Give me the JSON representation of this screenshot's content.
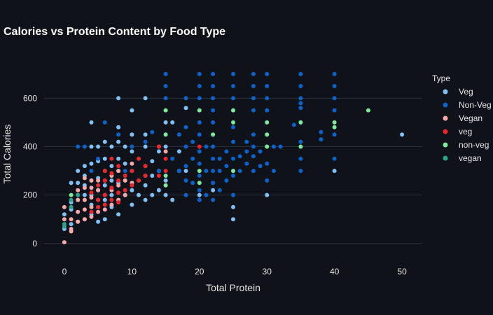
{
  "chart_data": {
    "type": "scatter",
    "title": "Calories vs Protein Content by Food Type",
    "xlabel": "Total Protein",
    "ylabel": "Total Calories",
    "xlim": [
      -3,
      53
    ],
    "ylim": [
      -70,
      760
    ],
    "x_ticks": [
      0,
      10,
      20,
      30,
      40,
      50
    ],
    "y_ticks": [
      0,
      200,
      400,
      600
    ],
    "grid": "horizontal",
    "legend_position": "right",
    "legend_title": "Type",
    "series": [
      {
        "name": "Veg",
        "color": "#7fc1f5",
        "points": [
          [
            0,
            60
          ],
          [
            0,
            120
          ],
          [
            1,
            80
          ],
          [
            1,
            140
          ],
          [
            1,
            170
          ],
          [
            1,
            250
          ],
          [
            2,
            90
          ],
          [
            2,
            180
          ],
          [
            2,
            250
          ],
          [
            2,
            300
          ],
          [
            3,
            100
          ],
          [
            3,
            200
          ],
          [
            3,
            240
          ],
          [
            3,
            280
          ],
          [
            3,
            320
          ],
          [
            4,
            120
          ],
          [
            4,
            160
          ],
          [
            4,
            200
          ],
          [
            4,
            260
          ],
          [
            4,
            330
          ],
          [
            4,
            400
          ],
          [
            4,
            500
          ],
          [
            5,
            90
          ],
          [
            5,
            150
          ],
          [
            5,
            220
          ],
          [
            5,
            270
          ],
          [
            5,
            340
          ],
          [
            5,
            400
          ],
          [
            6,
            100
          ],
          [
            6,
            180
          ],
          [
            6,
            240
          ],
          [
            6,
            300
          ],
          [
            6,
            350
          ],
          [
            6,
            420
          ],
          [
            7,
            150
          ],
          [
            7,
            200
          ],
          [
            7,
            260
          ],
          [
            7,
            320
          ],
          [
            7,
            400
          ],
          [
            8,
            120
          ],
          [
            8,
            180
          ],
          [
            8,
            250
          ],
          [
            8,
            300
          ],
          [
            8,
            350
          ],
          [
            8,
            420
          ],
          [
            8,
            480
          ],
          [
            8,
            600
          ],
          [
            9,
            200
          ],
          [
            9,
            260
          ],
          [
            9,
            330
          ],
          [
            9,
            400
          ],
          [
            10,
            160
          ],
          [
            10,
            220
          ],
          [
            10,
            300
          ],
          [
            10,
            380
          ],
          [
            10,
            450
          ],
          [
            10,
            550
          ],
          [
            11,
            200
          ],
          [
            11,
            260
          ],
          [
            12,
            180
          ],
          [
            12,
            240
          ],
          [
            12,
            320
          ],
          [
            12,
            400
          ],
          [
            12,
            450
          ],
          [
            12,
            600
          ],
          [
            13,
            200
          ],
          [
            13,
            280
          ],
          [
            13,
            340
          ],
          [
            14,
            220
          ],
          [
            14,
            300
          ],
          [
            14,
            380
          ],
          [
            15,
            200
          ],
          [
            15,
            260
          ],
          [
            15,
            400
          ],
          [
            15,
            500
          ],
          [
            16,
            180
          ],
          [
            16,
            500
          ],
          [
            17,
            300
          ],
          [
            17,
            380
          ],
          [
            18,
            300
          ],
          [
            18,
            560
          ],
          [
            20,
            200
          ],
          [
            22,
            220
          ],
          [
            25,
            100
          ],
          [
            25,
            150
          ],
          [
            30,
            200
          ],
          [
            40,
            300
          ],
          [
            50,
            450
          ]
        ]
      },
      {
        "name": "Non-Veg",
        "color": "#0b63c9",
        "points": [
          [
            2,
            400
          ],
          [
            3,
            400
          ],
          [
            4,
            300
          ],
          [
            5,
            350
          ],
          [
            6,
            500
          ],
          [
            8,
            450
          ],
          [
            9,
            300
          ],
          [
            10,
            400
          ],
          [
            11,
            350
          ],
          [
            12,
            420
          ],
          [
            13,
            460
          ],
          [
            14,
            300
          ],
          [
            15,
            450
          ],
          [
            15,
            550
          ],
          [
            15,
            600
          ],
          [
            15,
            650
          ],
          [
            15,
            700
          ],
          [
            16,
            350
          ],
          [
            17,
            300
          ],
          [
            17,
            450
          ],
          [
            18,
            200
          ],
          [
            18,
            260
          ],
          [
            18,
            320
          ],
          [
            18,
            400
          ],
          [
            18,
            480
          ],
          [
            18,
            600
          ],
          [
            19,
            250
          ],
          [
            19,
            350
          ],
          [
            19,
            420
          ],
          [
            20,
            180
          ],
          [
            20,
            220
          ],
          [
            20,
            280
          ],
          [
            20,
            330
          ],
          [
            20,
            380
          ],
          [
            20,
            450
          ],
          [
            20,
            500
          ],
          [
            20,
            550
          ],
          [
            20,
            600
          ],
          [
            20,
            650
          ],
          [
            20,
            700
          ],
          [
            21,
            200
          ],
          [
            21,
            300
          ],
          [
            21,
            400
          ],
          [
            22,
            180
          ],
          [
            22,
            250
          ],
          [
            22,
            300
          ],
          [
            22,
            350
          ],
          [
            22,
            400
          ],
          [
            22,
            450
          ],
          [
            22,
            500
          ],
          [
            22,
            550
          ],
          [
            22,
            600
          ],
          [
            22,
            650
          ],
          [
            22,
            700
          ],
          [
            23,
            220
          ],
          [
            23,
            300
          ],
          [
            23,
            350
          ],
          [
            24,
            260
          ],
          [
            24,
            320
          ],
          [
            24,
            380
          ],
          [
            25,
            200
          ],
          [
            25,
            280
          ],
          [
            25,
            350
          ],
          [
            25,
            420
          ],
          [
            25,
            480
          ],
          [
            25,
            550
          ],
          [
            25,
            600
          ],
          [
            25,
            650
          ],
          [
            25,
            700
          ],
          [
            26,
            300
          ],
          [
            26,
            360
          ],
          [
            27,
            330
          ],
          [
            27,
            380
          ],
          [
            27,
            420
          ],
          [
            28,
            300
          ],
          [
            28,
            360
          ],
          [
            28,
            400
          ],
          [
            28,
            450
          ],
          [
            28,
            550
          ],
          [
            28,
            600
          ],
          [
            28,
            650
          ],
          [
            28,
            700
          ],
          [
            29,
            320
          ],
          [
            29,
            380
          ],
          [
            30,
            260
          ],
          [
            30,
            330
          ],
          [
            30,
            400
          ],
          [
            30,
            450
          ],
          [
            30,
            500
          ],
          [
            30,
            550
          ],
          [
            30,
            600
          ],
          [
            30,
            650
          ],
          [
            30,
            700
          ],
          [
            31,
            300
          ],
          [
            31,
            400
          ],
          [
            32,
            400
          ],
          [
            34,
            490
          ],
          [
            35,
            300
          ],
          [
            35,
            350
          ],
          [
            35,
            420
          ],
          [
            35,
            500
          ],
          [
            35,
            560
          ],
          [
            35,
            580
          ],
          [
            35,
            600
          ],
          [
            35,
            650
          ],
          [
            35,
            700
          ],
          [
            38,
            430
          ],
          [
            38,
            460
          ],
          [
            40,
            350
          ],
          [
            40,
            450
          ],
          [
            40,
            550
          ],
          [
            40,
            600
          ],
          [
            40,
            650
          ],
          [
            40,
            700
          ]
        ]
      },
      {
        "name": "Vegan",
        "color": "#f7a8a8",
        "points": [
          [
            0,
            5
          ],
          [
            0,
            100
          ],
          [
            0,
            150
          ],
          [
            1,
            50
          ],
          [
            1,
            60
          ],
          [
            1,
            100
          ],
          [
            1,
            150
          ],
          [
            2,
            90
          ],
          [
            2,
            130
          ],
          [
            2,
            180
          ],
          [
            2,
            220
          ],
          [
            3,
            100
          ],
          [
            3,
            140
          ],
          [
            3,
            180
          ],
          [
            3,
            230
          ],
          [
            3,
            270
          ],
          [
            4,
            110
          ],
          [
            4,
            150
          ],
          [
            4,
            190
          ],
          [
            4,
            230
          ],
          [
            4,
            260
          ],
          [
            5,
            130
          ],
          [
            5,
            180
          ],
          [
            5,
            220
          ],
          [
            5,
            260
          ],
          [
            6,
            140
          ],
          [
            6,
            200
          ],
          [
            6,
            260
          ],
          [
            7,
            160
          ],
          [
            7,
            220
          ],
          [
            7,
            280
          ],
          [
            8,
            180
          ],
          [
            8,
            240
          ],
          [
            8,
            300
          ],
          [
            9,
            200
          ],
          [
            9,
            260
          ],
          [
            10,
            250
          ],
          [
            10,
            330
          ],
          [
            12,
            280
          ],
          [
            14,
            400
          ],
          [
            15,
            380
          ]
        ]
      },
      {
        "name": "veg",
        "color": "#e8262b",
        "points": [
          [
            4,
            130
          ],
          [
            4,
            210
          ],
          [
            5,
            150
          ],
          [
            5,
            180
          ],
          [
            5,
            240
          ],
          [
            6,
            160
          ],
          [
            6,
            200
          ],
          [
            6,
            260
          ],
          [
            6,
            300
          ],
          [
            7,
            180
          ],
          [
            7,
            230
          ],
          [
            7,
            290
          ],
          [
            7,
            350
          ],
          [
            8,
            170
          ],
          [
            8,
            210
          ],
          [
            8,
            260
          ],
          [
            8,
            320
          ],
          [
            9,
            220
          ],
          [
            9,
            280
          ],
          [
            10,
            240
          ],
          [
            10,
            300
          ],
          [
            11,
            260
          ],
          [
            11,
            350
          ],
          [
            12,
            280
          ],
          [
            12,
            320
          ],
          [
            14,
            280
          ],
          [
            14,
            400
          ],
          [
            15,
            240
          ],
          [
            15,
            300
          ],
          [
            15,
            350
          ],
          [
            20,
            400
          ]
        ]
      },
      {
        "name": "non-veg",
        "color": "#7fe89a",
        "points": [
          [
            1,
            200
          ],
          [
            15,
            240
          ],
          [
            15,
            280
          ],
          [
            15,
            450
          ],
          [
            15,
            550
          ],
          [
            20,
            250
          ],
          [
            20,
            300
          ],
          [
            20,
            550
          ],
          [
            22,
            450
          ],
          [
            25,
            300
          ],
          [
            25,
            500
          ],
          [
            25,
            550
          ],
          [
            30,
            400
          ],
          [
            30,
            450
          ],
          [
            30,
            500
          ],
          [
            35,
            400
          ],
          [
            35,
            500
          ],
          [
            40,
            480
          ],
          [
            40,
            500
          ],
          [
            45,
            550
          ]
        ]
      },
      {
        "name": "vegan",
        "color": "#2aa58c",
        "points": [
          [
            0,
            70
          ],
          [
            0,
            80
          ],
          [
            1,
            150
          ],
          [
            1,
            180
          ],
          [
            2,
            200
          ]
        ]
      }
    ]
  }
}
